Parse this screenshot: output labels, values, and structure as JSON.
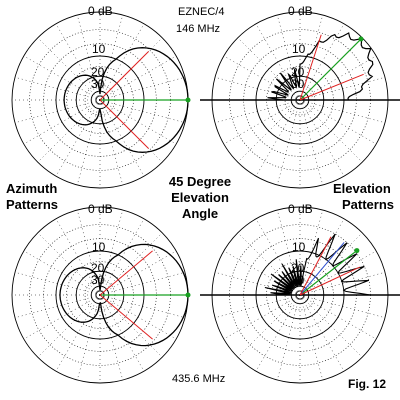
{
  "header": {
    "software": "EZNEC/4",
    "freq_top": "146 MHz",
    "freq_bottom": "435.6 MHz"
  },
  "labels": {
    "azimuth_line1": "Azimuth",
    "azimuth_line2": "Patterns",
    "elevation_line1": "Elevation",
    "elevation_line2": "Patterns",
    "center_line1": "45 Degree",
    "center_line2": "Elevation",
    "center_line3": "Angle",
    "figure": "Fig. 12"
  },
  "scale": {
    "db0": "0 dB",
    "db10": "10",
    "db20": "20",
    "db30": "30"
  },
  "colors": {
    "pattern": "#000000",
    "grid": "#000000",
    "red_line": "#e02020",
    "green_line": "#18a020",
    "blue_line": "#3050d0",
    "marker": "#18a020"
  }
}
